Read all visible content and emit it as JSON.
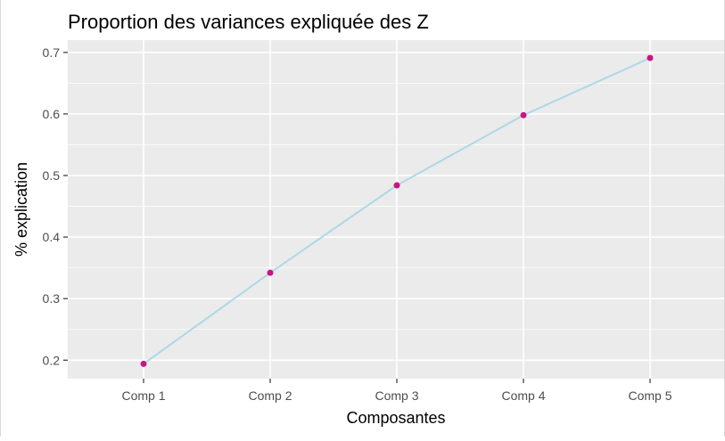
{
  "chart_data": {
    "type": "line",
    "title": "Proportion des variances expliquée des Z",
    "xlabel": "Composantes",
    "ylabel": "% explication",
    "categories": [
      "Comp 1",
      "Comp 2",
      "Comp 3",
      "Comp 4",
      "Comp 5"
    ],
    "values": [
      0.194,
      0.342,
      0.484,
      0.598,
      0.691
    ],
    "ylim": [
      0.17,
      0.72
    ],
    "yticks": [
      0.2,
      0.3,
      0.4,
      0.5,
      0.6,
      0.7
    ],
    "grid": true,
    "legend": "none",
    "line_color": "#add8e6",
    "point_color": "#c71585",
    "panel_color": "#ebebeb",
    "grid_color": "#ffffff"
  }
}
